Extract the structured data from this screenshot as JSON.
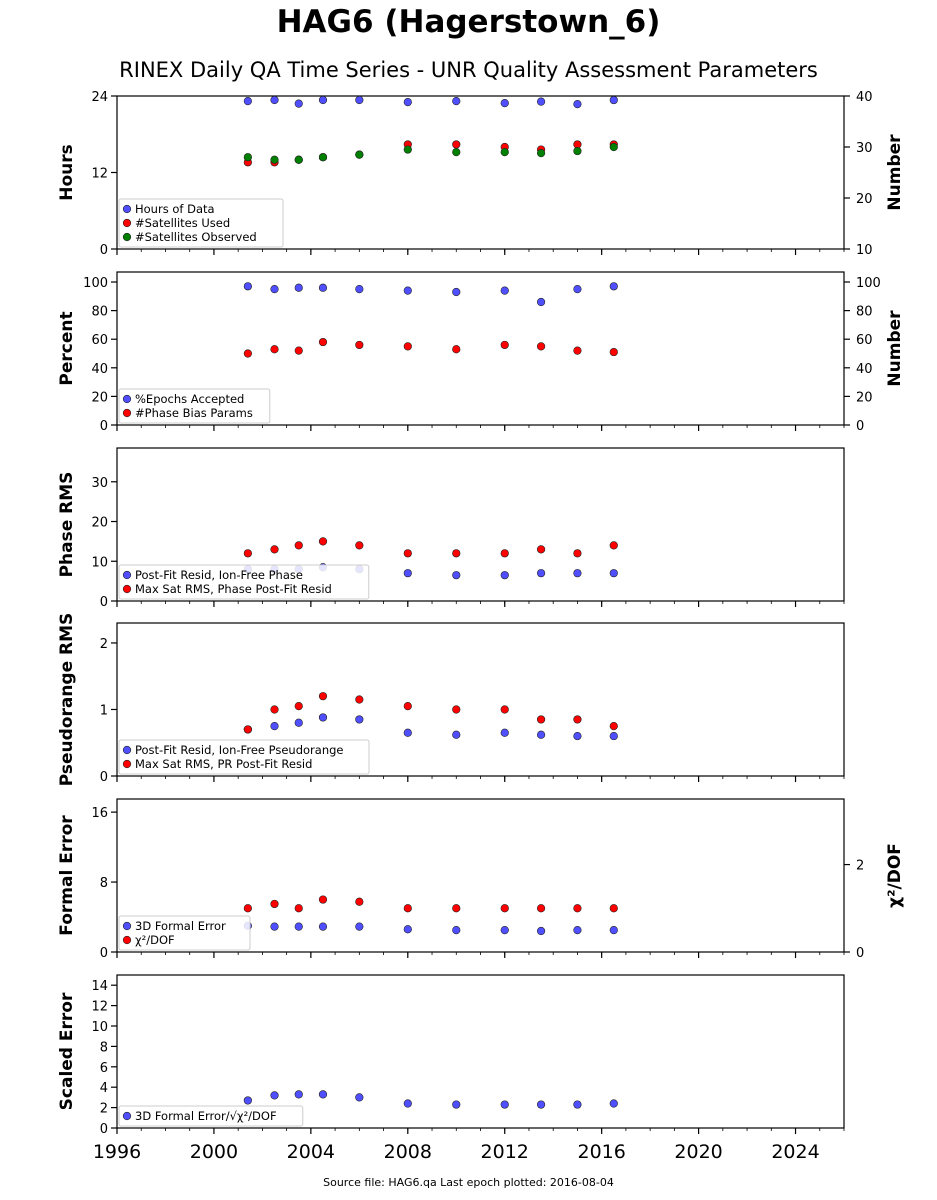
{
  "title": "HAG6 (Hagerstown_6)",
  "subtitle": "RINEX Daily QA Time Series - UNR Quality Assessment Parameters",
  "footer": "Source file: HAG6.qa Last epoch plotted: 2016-08-04",
  "chart_data": {
    "type": "scatter",
    "x_ticks": [
      "1996",
      "2000",
      "2004",
      "2008",
      "2012",
      "2016",
      "2020",
      "2024"
    ],
    "xlim": [
      1996,
      2026
    ],
    "panels": [
      {
        "ylabel": "Hours",
        "ylim": [
          0,
          24
        ],
        "yticks": [
          "0",
          "12",
          "24"
        ],
        "ylabel_right": "Number",
        "ylim_right": [
          10,
          40
        ],
        "yticks_right": [
          "10",
          "20",
          "30",
          "40"
        ],
        "legend": [
          "Hours of Data",
          "#Satellites Used",
          "#Satellites Observed"
        ],
        "series": [
          {
            "name": "Hours of Data",
            "color": "#4f4fff",
            "axis": "right",
            "x": [
              2001.4,
              2002.5,
              2003.5,
              2004.5,
              2006.0,
              2008.0,
              2010.0,
              2012.0,
              2013.5,
              2015.0,
              2016.5
            ],
            "y": [
              39.0,
              39.5,
              38.5,
              39.8,
              39.6,
              38.8,
              39.0,
              38.6,
              38.9,
              38.4,
              39.2
            ]
          },
          {
            "name": "#Satellites Used",
            "color": "#ff0000",
            "axis": "right",
            "x": [
              2001.4,
              2002.5,
              2003.5,
              2004.5,
              2006.0,
              2008.0,
              2010.0,
              2012.0,
              2013.5,
              2015.0,
              2016.5
            ],
            "y": [
              27.0,
              27.0,
              27.5,
              28.0,
              28.5,
              30.5,
              30.5,
              30.0,
              29.5,
              30.5,
              30.5
            ]
          },
          {
            "name": "#Satellites Observed",
            "color": "#008000",
            "axis": "right",
            "x": [
              2001.4,
              2002.5,
              2003.5,
              2004.5,
              2006.0,
              2008.0,
              2010.0,
              2012.0,
              2013.5,
              2015.0,
              2016.5
            ],
            "y": [
              28.0,
              27.5,
              27.5,
              28.0,
              28.5,
              29.5,
              29.0,
              29.0,
              28.8,
              29.2,
              30.0
            ]
          }
        ]
      },
      {
        "ylabel": "Percent",
        "ylim": [
          0,
          107
        ],
        "yticks": [
          "0",
          "20",
          "40",
          "60",
          "80",
          "100"
        ],
        "ylabel_right": "Number",
        "ylim_right": [
          0,
          107
        ],
        "yticks_right": [
          "0",
          "20",
          "40",
          "60",
          "80",
          "100"
        ],
        "legend": [
          "%Epochs Accepted",
          "#Phase Bias Params"
        ],
        "series": [
          {
            "name": "%Epochs Accepted",
            "color": "#4f4fff",
            "axis": "left",
            "x": [
              2001.4,
              2002.5,
              2003.5,
              2004.5,
              2006.0,
              2008.0,
              2010.0,
              2012.0,
              2013.5,
              2015.0,
              2016.5
            ],
            "y": [
              97,
              95,
              96,
              96,
              95,
              94,
              93,
              94,
              86,
              95,
              97
            ]
          },
          {
            "name": "#Phase Bias Params",
            "color": "#ff0000",
            "axis": "right",
            "x": [
              2001.4,
              2002.5,
              2003.5,
              2004.5,
              2006.0,
              2008.0,
              2010.0,
              2012.0,
              2013.5,
              2015.0,
              2016.5
            ],
            "y": [
              50,
              53,
              52,
              58,
              56,
              55,
              53,
              56,
              55,
              52,
              51
            ]
          }
        ]
      },
      {
        "ylabel": "Phase RMS",
        "ylim": [
          0,
          38.5
        ],
        "yticks": [
          "0",
          "10",
          "20",
          "30"
        ],
        "legend": [
          "Post-Fit Resid, Ion-Free Phase",
          "Max Sat RMS, Phase Post-Fit Resid"
        ],
        "series": [
          {
            "name": "Post-Fit Resid, Ion-Free Phase",
            "color": "#4f4fff",
            "axis": "left",
            "x": [
              2001.4,
              2002.5,
              2003.5,
              2004.5,
              2006.0,
              2008.0,
              2010.0,
              2012.0,
              2013.5,
              2015.0,
              2016.5
            ],
            "y": [
              8,
              8,
              8,
              8.5,
              8,
              7,
              6.5,
              6.5,
              7,
              7,
              7
            ]
          },
          {
            "name": "Max Sat RMS, Phase Post-Fit Resid",
            "color": "#ff0000",
            "axis": "left",
            "x": [
              2001.4,
              2002.5,
              2003.5,
              2004.5,
              2006.0,
              2008.0,
              2010.0,
              2012.0,
              2013.5,
              2015.0,
              2016.5
            ],
            "y": [
              12,
              13,
              14,
              15,
              14,
              12,
              12,
              12,
              13,
              12,
              14
            ]
          }
        ]
      },
      {
        "ylabel": "Pseudorange RMS",
        "ylim": [
          0,
          2.3
        ],
        "yticks": [
          "0",
          "1",
          "2"
        ],
        "legend": [
          "Post-Fit Resid, Ion-Free Pseudorange",
          "Max Sat RMS, PR Post-Fit Resid"
        ],
        "series": [
          {
            "name": "Post-Fit Resid, Ion-Free Pseudorange",
            "color": "#4f4fff",
            "axis": "left",
            "x": [
              2001.4,
              2002.5,
              2003.5,
              2004.5,
              2006.0,
              2008.0,
              2010.0,
              2012.0,
              2013.5,
              2015.0,
              2016.5
            ],
            "y": [
              0.7,
              0.75,
              0.8,
              0.88,
              0.85,
              0.65,
              0.62,
              0.65,
              0.62,
              0.6,
              0.6
            ]
          },
          {
            "name": "Max Sat RMS, PR Post-Fit Resid",
            "color": "#ff0000",
            "axis": "left",
            "x": [
              2001.4,
              2002.5,
              2003.5,
              2004.5,
              2006.0,
              2008.0,
              2010.0,
              2012.0,
              2013.5,
              2015.0,
              2016.5
            ],
            "y": [
              0.7,
              1.0,
              1.05,
              1.2,
              1.15,
              1.05,
              1.0,
              1.0,
              0.85,
              0.85,
              0.75
            ]
          }
        ]
      },
      {
        "ylabel": "Formal Error",
        "ylim": [
          0,
          17.5
        ],
        "yticks": [
          "0",
          "8",
          "16"
        ],
        "ylabel_right": "χ²/DOF",
        "ylim_right": [
          0,
          3.5
        ],
        "yticks_right": [
          "0",
          "2"
        ],
        "legend": [
          "3D Formal Error",
          "χ²/DOF"
        ],
        "series": [
          {
            "name": "3D Formal Error",
            "color": "#4f4fff",
            "axis": "left",
            "x": [
              2001.4,
              2002.5,
              2003.5,
              2004.5,
              2006.0,
              2008.0,
              2010.0,
              2012.0,
              2013.5,
              2015.0,
              2016.5
            ],
            "y": [
              3.0,
              2.9,
              2.9,
              2.9,
              2.9,
              2.6,
              2.5,
              2.5,
              2.4,
              2.5,
              2.5
            ]
          },
          {
            "name": "χ²/DOF",
            "color": "#ff0000",
            "axis": "right",
            "x": [
              2001.4,
              2002.5,
              2003.5,
              2004.5,
              2006.0,
              2008.0,
              2010.0,
              2012.0,
              2013.5,
              2015.0,
              2016.5
            ],
            "y": [
              1.0,
              1.1,
              1.0,
              1.2,
              1.15,
              1.0,
              1.0,
              1.0,
              1.0,
              1.0,
              1.0
            ]
          }
        ]
      },
      {
        "ylabel": "Scaled Error",
        "ylim": [
          0,
          15
        ],
        "yticks": [
          "0",
          "2",
          "4",
          "6",
          "8",
          "10",
          "12",
          "14"
        ],
        "legend": [
          "3D Formal Error/√χ²/DOF"
        ],
        "series": [
          {
            "name": "3D Formal Error/√χ²/DOF",
            "color": "#4f4fff",
            "axis": "left",
            "x": [
              2001.4,
              2002.5,
              2003.5,
              2004.5,
              2006.0,
              2008.0,
              2010.0,
              2012.0,
              2013.5,
              2015.0,
              2016.5
            ],
            "y": [
              2.7,
              3.2,
              3.3,
              3.3,
              3.0,
              2.4,
              2.3,
              2.3,
              2.3,
              2.3,
              2.4
            ]
          }
        ]
      }
    ]
  }
}
